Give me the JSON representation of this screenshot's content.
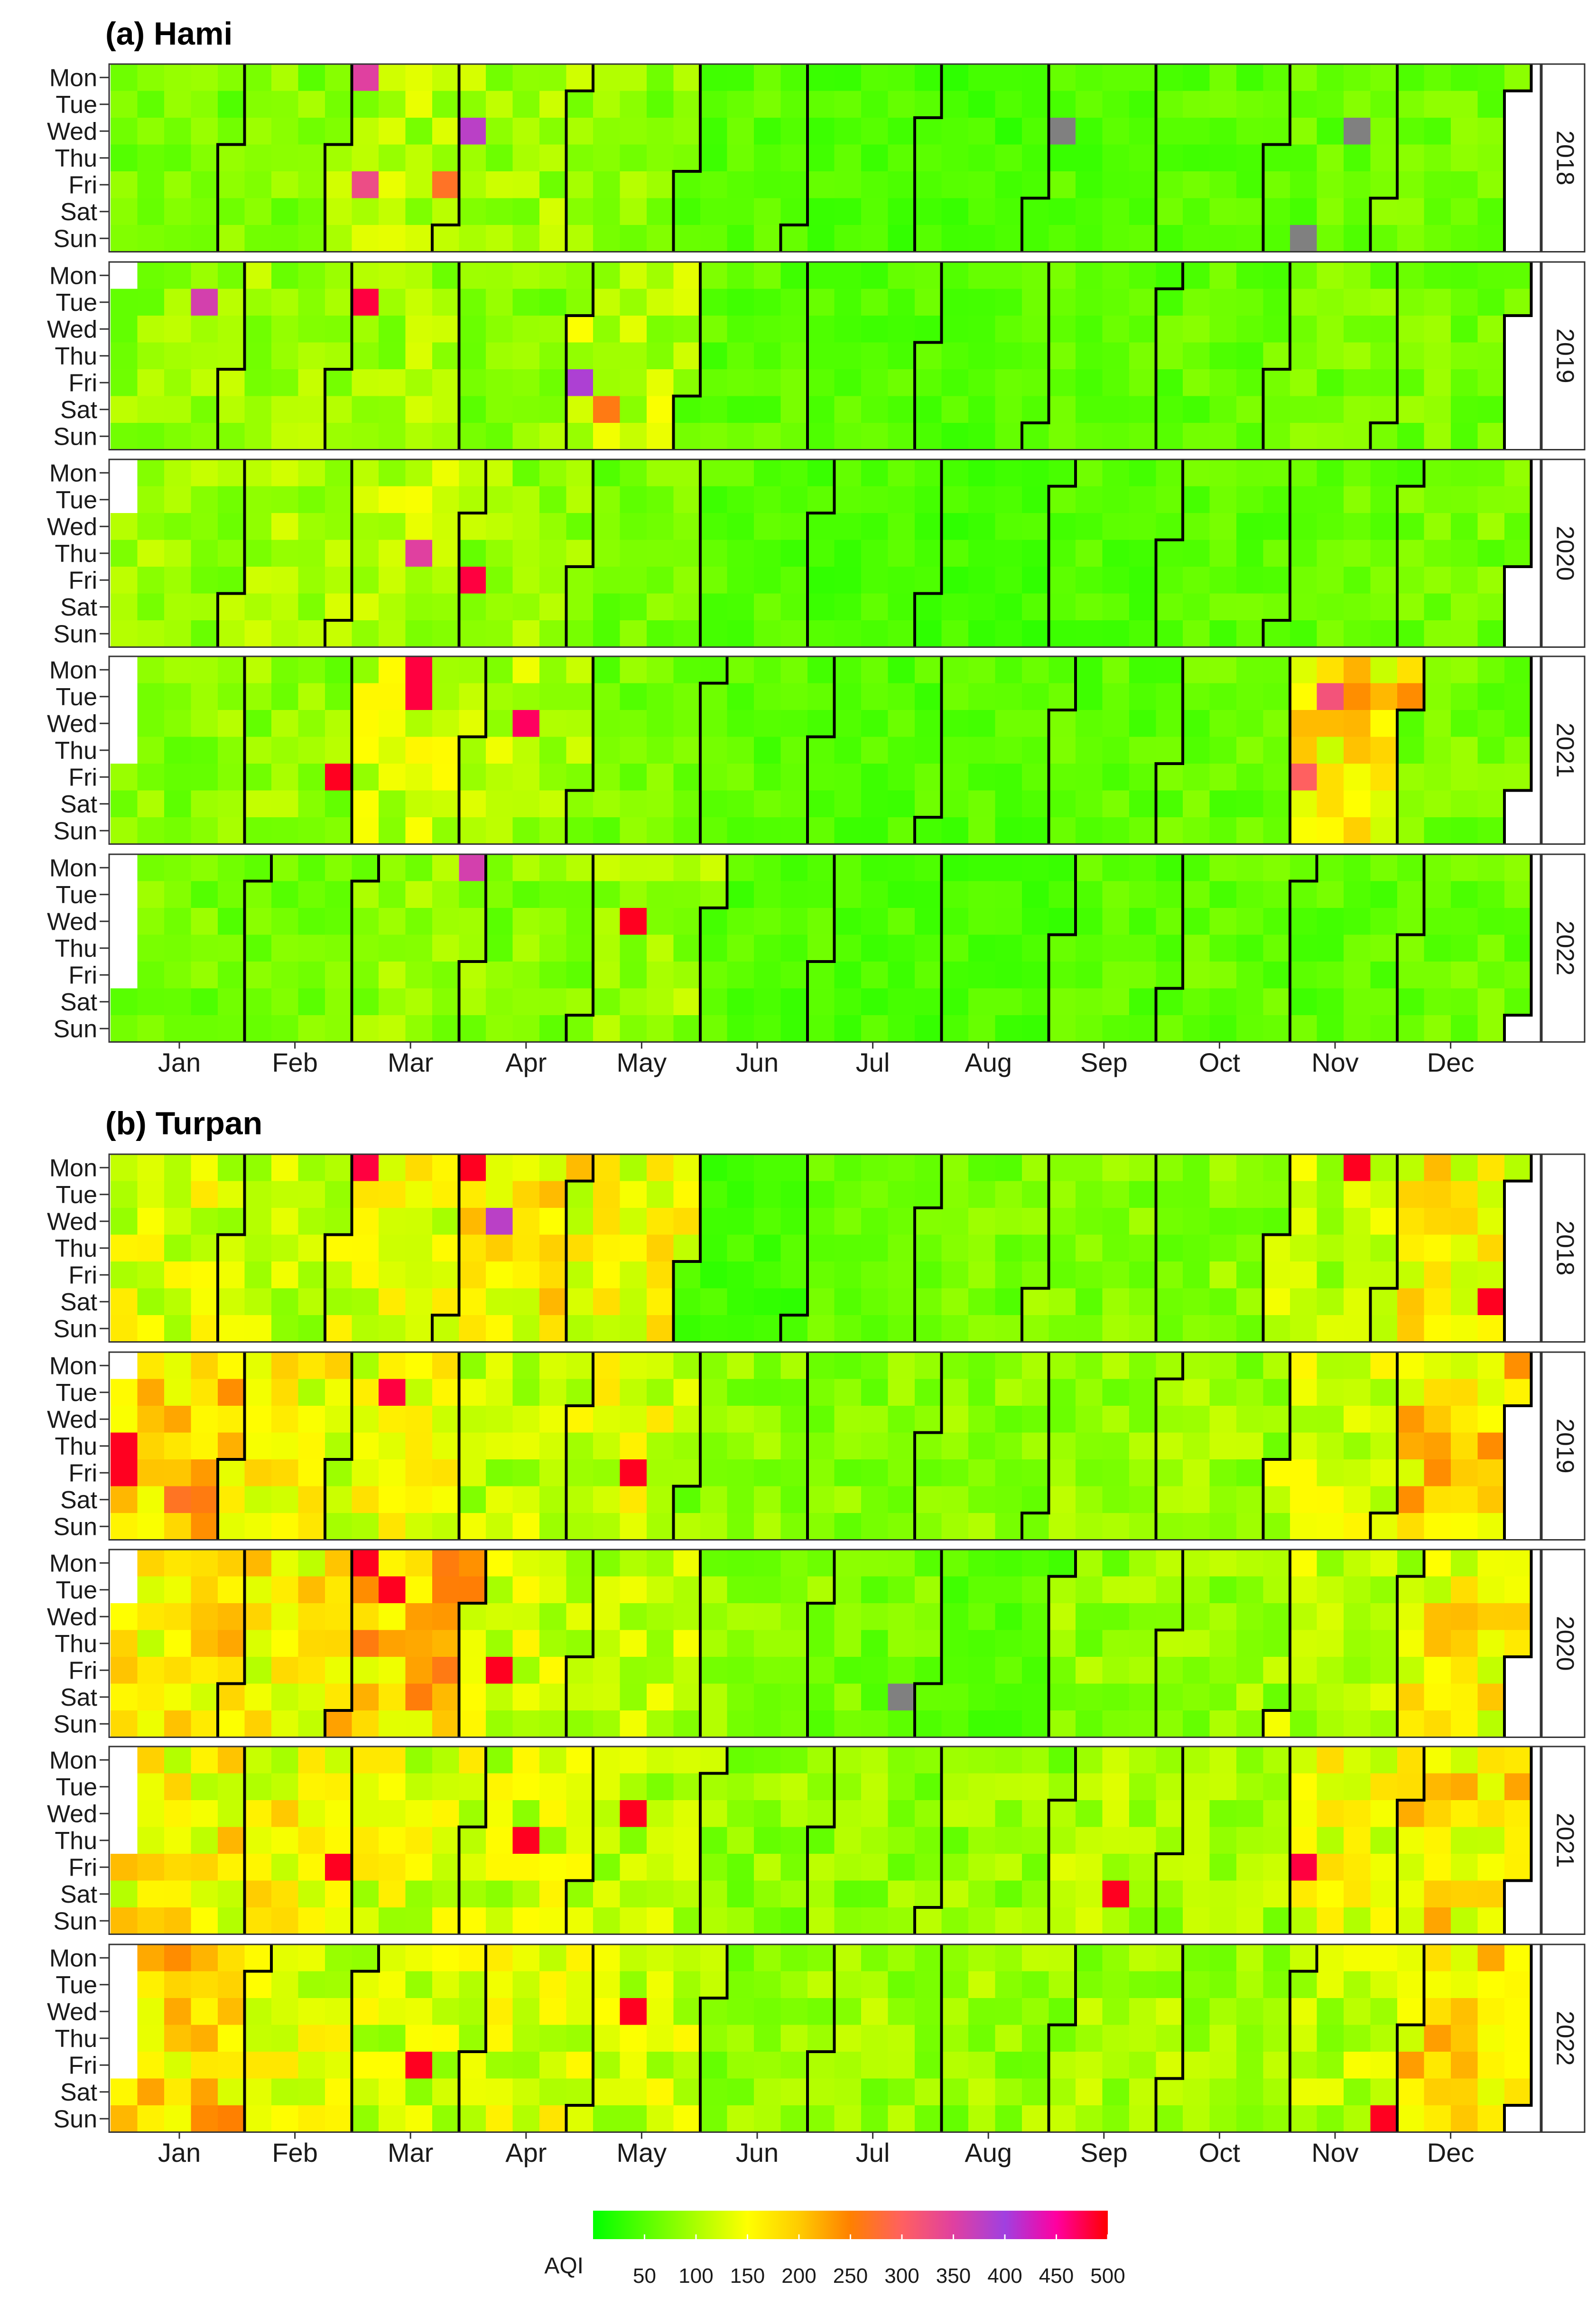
{
  "chart_data": {
    "type": "heatmap",
    "colorbar": {
      "title": "AQI",
      "ticks": [
        50,
        100,
        150,
        200,
        250,
        300,
        350,
        400,
        450,
        500
      ],
      "range": [
        0,
        500
      ],
      "stops": [
        {
          "value": 0,
          "color": "#00ff00"
        },
        {
          "value": 100,
          "color": "#aaff00"
        },
        {
          "value": 150,
          "color": "#ffff00"
        },
        {
          "value": 200,
          "color": "#ffcc00"
        },
        {
          "value": 250,
          "color": "#ff8000"
        },
        {
          "value": 300,
          "color": "#ff6060"
        },
        {
          "value": 350,
          "color": "#e040a0"
        },
        {
          "value": 400,
          "color": "#a040e0"
        },
        {
          "value": 450,
          "color": "#ff00a0"
        },
        {
          "value": 500,
          "color": "#ff0000"
        }
      ],
      "missing_color": "#808080"
    },
    "weekday_labels": [
      "Mon",
      "Tue",
      "Wed",
      "Thu",
      "Fri",
      "Sat",
      "Sun"
    ],
    "month_labels": [
      "Jan",
      "Feb",
      "Mar",
      "Apr",
      "May",
      "Jun",
      "Jul",
      "Aug",
      "Sep",
      "Oct",
      "Nov",
      "Dec"
    ],
    "panels": [
      {
        "title": "(a) Hami",
        "years": [
          {
            "year": "2018",
            "monthly_typical_aqi": [
              70,
              75,
              105,
              95,
              80,
              55,
              45,
              40,
              50,
              55,
              60,
              65
            ],
            "notable_days": [
              {
                "date": "2018-03-05",
                "aqi": 350
              },
              {
                "date": "2018-03-30",
                "aqi": 270
              },
              {
                "date": "2018-04-04",
                "aqi": 380
              },
              {
                "date": "2018-03-09",
                "aqi": 330
              },
              {
                "date": "2018-11-11",
                "aqi": null
              },
              {
                "date": "2018-11-21",
                "aqi": null
              },
              {
                "date": "2018-09-05",
                "aqi": null
              }
            ]
          },
          {
            "year": "2019",
            "monthly_typical_aqi": [
              85,
              90,
              95,
              80,
              110,
              55,
              50,
              50,
              55,
              60,
              70,
              70
            ],
            "notable_days": [
              {
                "date": "2019-01-22",
                "aqi": 360
              },
              {
                "date": "2019-03-05",
                "aqi": 480
              },
              {
                "date": "2019-05-03",
                "aqi": 390
              },
              {
                "date": "2019-05-11",
                "aqi": 260
              }
            ]
          },
          {
            "year": "2020",
            "monthly_typical_aqi": [
              90,
              95,
              110,
              90,
              70,
              50,
              45,
              40,
              50,
              55,
              60,
              70
            ],
            "notable_days": [
              {
                "date": "2020-03-19",
                "aqi": 350
              },
              {
                "date": "2020-04-03",
                "aqi": 480
              }
            ]
          },
          {
            "year": "2021",
            "monthly_typical_aqi": [
              80,
              85,
              120,
              105,
              70,
              55,
              50,
              50,
              55,
              60,
              180,
              70
            ],
            "notable_days": [
              {
                "date": "2021-03-15",
                "aqi": 480
              },
              {
                "date": "2021-03-16",
                "aqi": 480
              },
              {
                "date": "2021-02-26",
                "aqi": 490
              },
              {
                "date": "2021-04-14",
                "aqi": 470
              },
              {
                "date": "2021-11-05",
                "aqi": 300
              },
              {
                "date": "2021-11-09",
                "aqi": 320
              }
            ]
          },
          {
            "year": "2022",
            "monthly_typical_aqi": [
              70,
              75,
              85,
              80,
              90,
              50,
              45,
              45,
              55,
              60,
              55,
              65
            ],
            "notable_days": [
              {
                "date": "2022-03-28",
                "aqi": 360
              },
              {
                "date": "2022-05-11",
                "aqi": 490
              }
            ]
          }
        ]
      },
      {
        "title": "(b) Turpan",
        "years": [
          {
            "year": "2018",
            "monthly_typical_aqi": [
              130,
              110,
              140,
              160,
              150,
              40,
              60,
              70,
              80,
              80,
              110,
              160
            ],
            "notable_days": [
              {
                "date": "2018-03-05",
                "aqi": 480
              },
              {
                "date": "2018-04-02",
                "aqi": 490
              },
              {
                "date": "2018-04-11",
                "aqi": 380
              },
              {
                "date": "2018-11-19",
                "aqi": 490
              },
              {
                "date": "2018-12-29",
                "aqi": 490
              }
            ]
          },
          {
            "year": "2019",
            "monthly_typical_aqi": [
              200,
              150,
              140,
              110,
              130,
              80,
              80,
              80,
              85,
              90,
              120,
              180
            ],
            "notable_days": [
              {
                "date": "2019-01-03",
                "aqi": 490
              },
              {
                "date": "2019-01-04",
                "aqi": 490
              },
              {
                "date": "2019-03-12",
                "aqi": 480
              },
              {
                "date": "2019-05-17",
                "aqi": 490
              }
            ]
          },
          {
            "year": "2020",
            "monthly_typical_aqi": [
              170,
              160,
              200,
              130,
              110,
              80,
              70,
              50,
              85,
              90,
              110,
              160
            ],
            "notable_days": [
              {
                "date": "2020-03-02",
                "aqi": 490
              },
              {
                "date": "2020-03-10",
                "aqi": 490
              },
              {
                "date": "2020-04-10",
                "aqi": 490
              },
              {
                "date": "2020-07-25",
                "aqi": null
              }
            ]
          },
          {
            "year": "2021",
            "monthly_typical_aqi": [
              160,
              150,
              130,
              120,
              110,
              85,
              85,
              85,
              100,
              95,
              140,
              170
            ],
            "notable_days": [
              {
                "date": "2021-02-26",
                "aqi": 490
              },
              {
                "date": "2021-04-15",
                "aqi": 490
              },
              {
                "date": "2021-05-12",
                "aqi": 490
              },
              {
                "date": "2021-09-18",
                "aqi": 490
              },
              {
                "date": "2021-11-05",
                "aqi": 480
              }
            ]
          },
          {
            "year": "2022",
            "monthly_typical_aqi": [
              190,
              130,
              120,
              130,
              120,
              85,
              90,
              90,
              95,
              100,
              110,
              180
            ],
            "notable_days": [
              {
                "date": "2022-03-18",
                "aqi": 490
              },
              {
                "date": "2022-05-11",
                "aqi": 490
              },
              {
                "date": "2022-11-27",
                "aqi": 490
              }
            ]
          }
        ]
      }
    ]
  }
}
